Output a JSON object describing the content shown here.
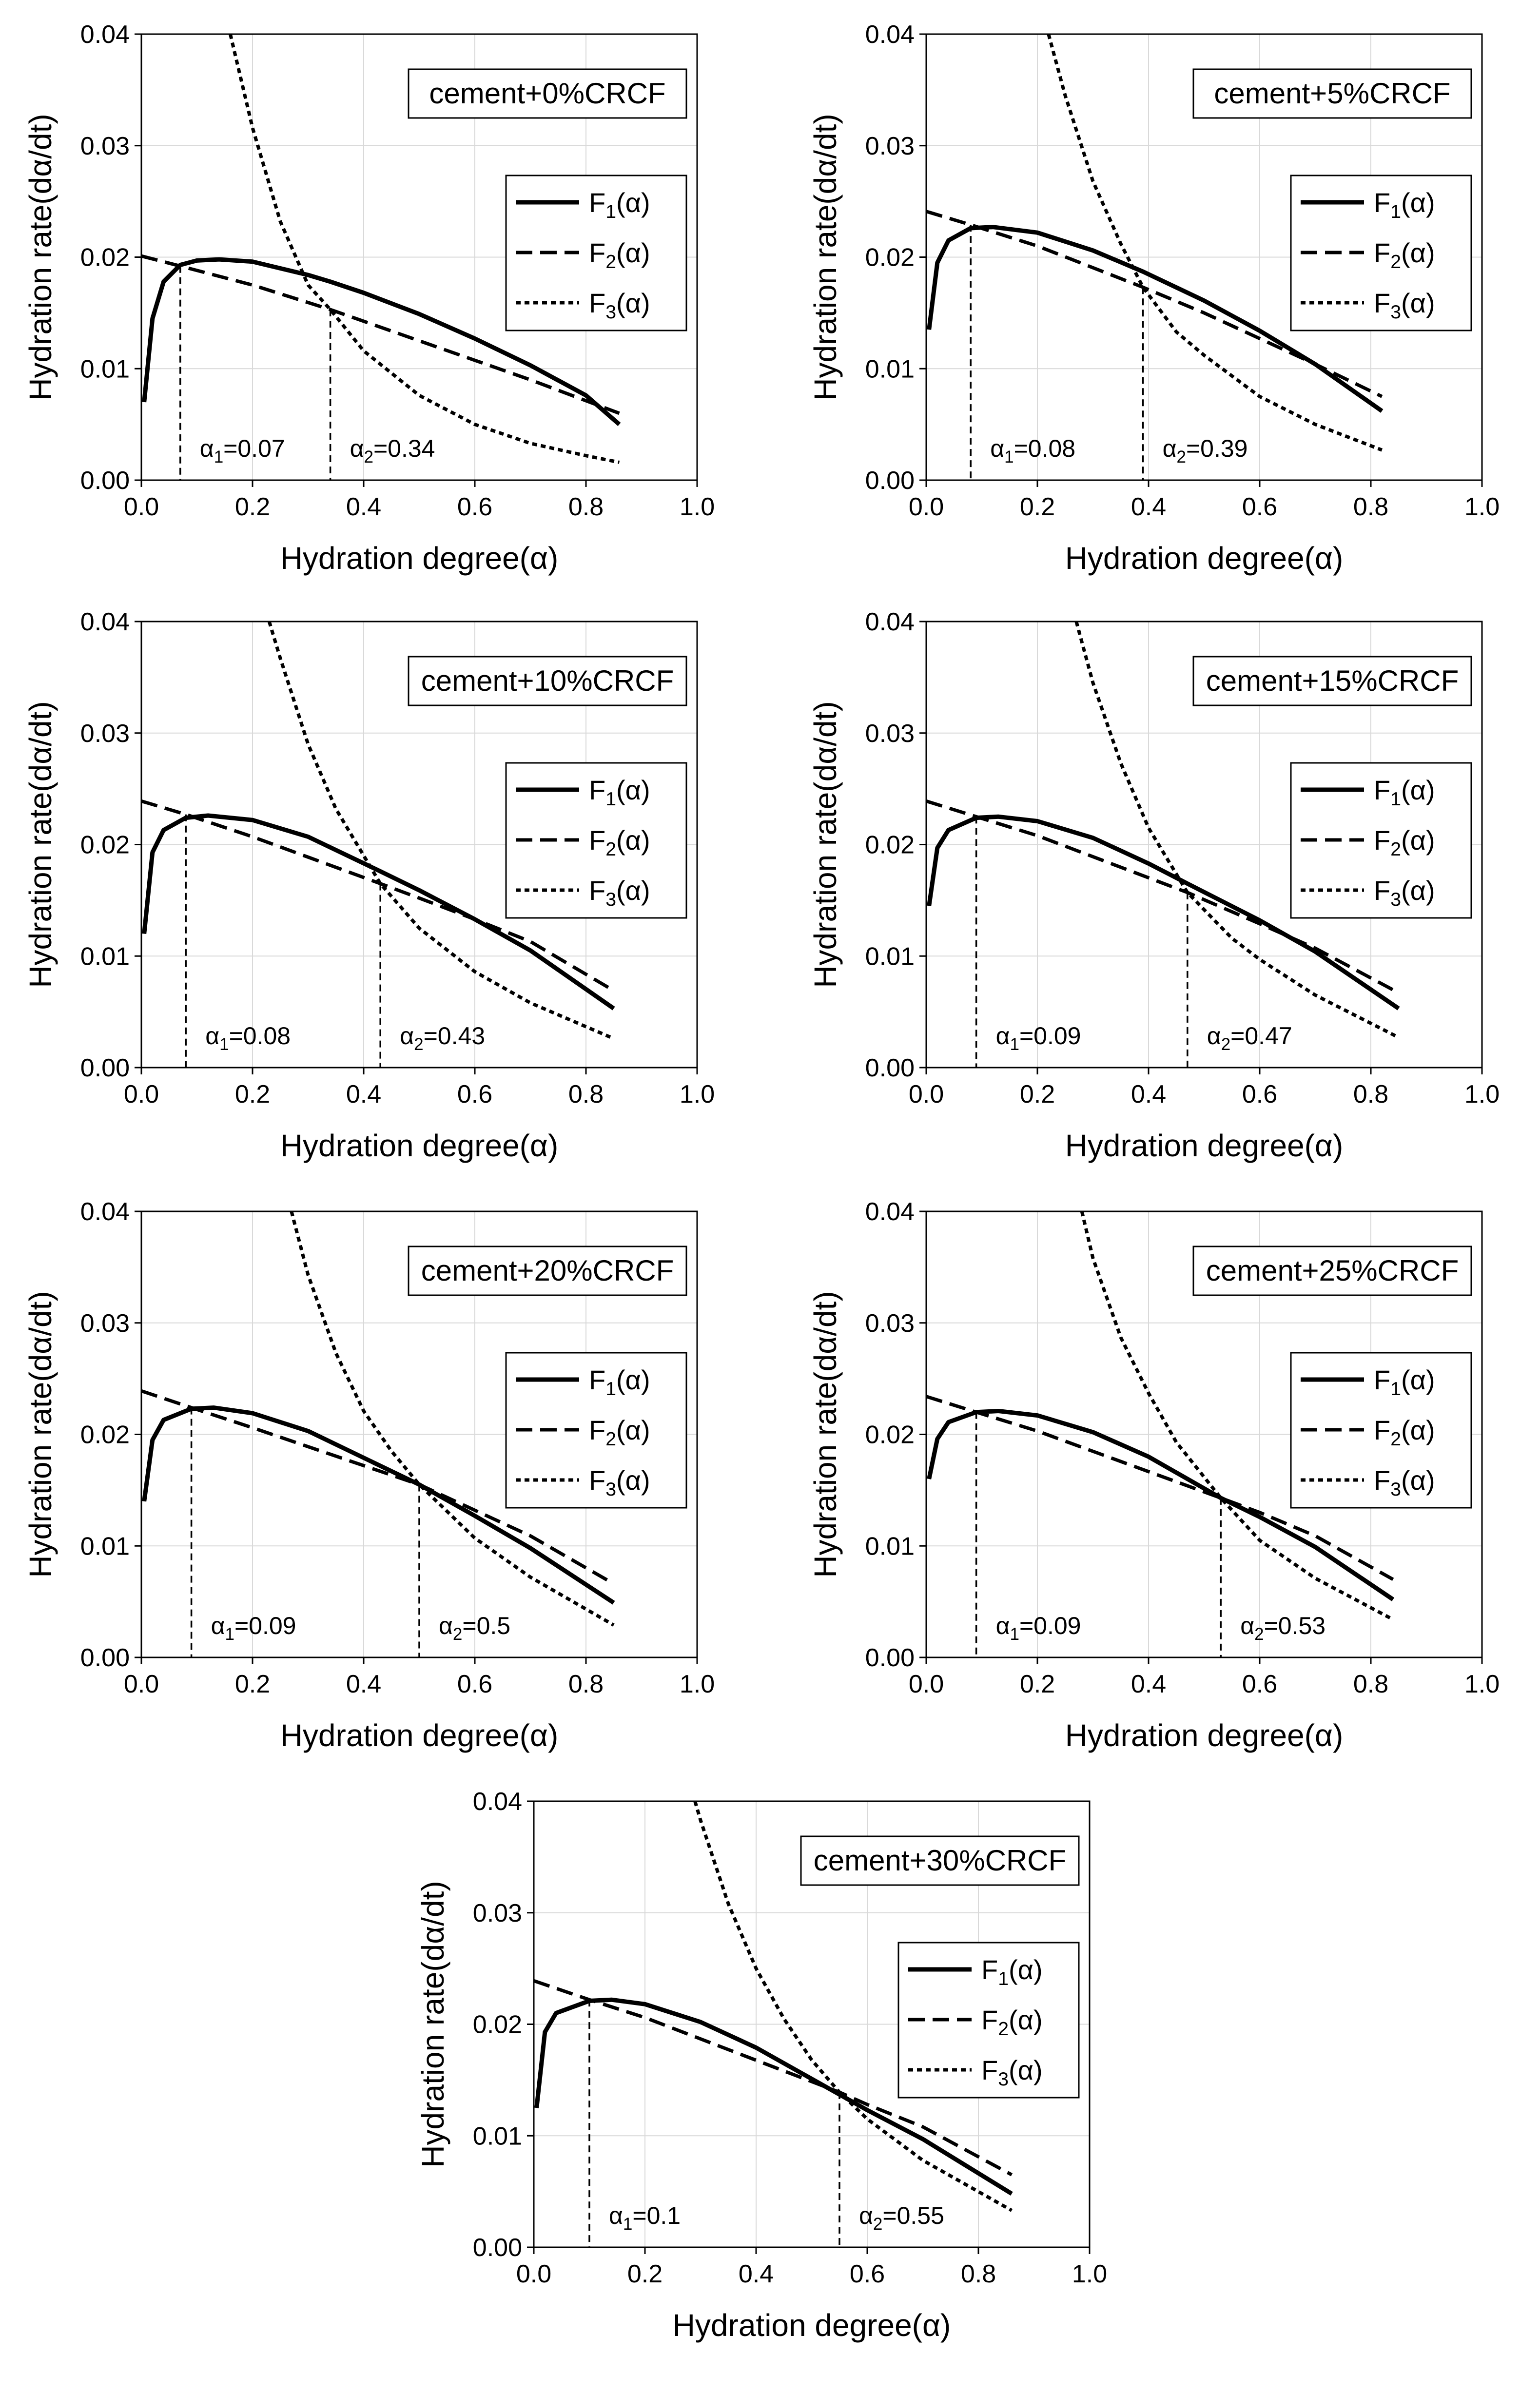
{
  "chart_data": [
    {
      "type": "line",
      "panel": "top-left",
      "title": "cement+0%CRCF",
      "xlabel": "Hydration degree(α)",
      "ylabel": "Hydration rate(dα/dt)",
      "xlim": [
        0.0,
        1.0
      ],
      "ylim": [
        0.0,
        0.04
      ],
      "xticks": [
        "0.0",
        "0.2",
        "0.4",
        "0.6",
        "0.8",
        "1.0"
      ],
      "yticks": [
        "0.00",
        "0.01",
        "0.02",
        "0.03",
        "0.04"
      ],
      "legend": [
        "F1(α)",
        "F2(α)",
        "F3(α)"
      ],
      "legend_position": "right",
      "series": [
        {
          "name": "F1(α)",
          "style": "solid",
          "x": [
            0.005,
            0.02,
            0.04,
            0.07,
            0.1,
            0.14,
            0.2,
            0.3,
            0.34,
            0.4,
            0.5,
            0.6,
            0.7,
            0.8,
            0.86
          ],
          "y": [
            0.007,
            0.0145,
            0.0178,
            0.0193,
            0.0197,
            0.0198,
            0.0196,
            0.0184,
            0.0178,
            0.0168,
            0.0149,
            0.0127,
            0.0103,
            0.0076,
            0.005
          ]
        },
        {
          "name": "F2(α)",
          "style": "dashed",
          "x": [
            0.0,
            0.07,
            0.2,
            0.34,
            0.5,
            0.7,
            0.86
          ],
          "y": [
            0.0201,
            0.0192,
            0.0175,
            0.0153,
            0.0125,
            0.009,
            0.006
          ]
        },
        {
          "name": "F3(α)",
          "style": "dotted",
          "x": [
            0.16,
            0.2,
            0.25,
            0.3,
            0.34,
            0.4,
            0.5,
            0.6,
            0.7,
            0.8,
            0.86
          ],
          "y": [
            0.04,
            0.0316,
            0.0232,
            0.0175,
            0.0153,
            0.0116,
            0.0076,
            0.005,
            0.0033,
            0.0022,
            0.0016
          ]
        }
      ],
      "annotations": [
        {
          "label": "α",
          "sub": "1",
          "value": "=0.07",
          "x": 0.07,
          "y": 0.0192
        },
        {
          "label": "α",
          "sub": "2",
          "value": "=0.34",
          "x": 0.34,
          "y": 0.0153
        }
      ]
    },
    {
      "type": "line",
      "panel": "top-right",
      "title": "cement+5%CRCF",
      "xlabel": "Hydration degree(α)",
      "ylabel": "Hydration rate(dα/dt)",
      "xlim": [
        0.0,
        1.0
      ],
      "ylim": [
        0.0,
        0.04
      ],
      "xticks": [
        "0.0",
        "0.2",
        "0.4",
        "0.6",
        "0.8",
        "1.0"
      ],
      "yticks": [
        "0.00",
        "0.01",
        "0.02",
        "0.03",
        "0.04"
      ],
      "legend": [
        "F1(α)",
        "F2(α)",
        "F3(α)"
      ],
      "legend_position": "right",
      "series": [
        {
          "name": "F1(α)",
          "style": "solid",
          "x": [
            0.005,
            0.02,
            0.04,
            0.08,
            0.12,
            0.2,
            0.3,
            0.39,
            0.5,
            0.6,
            0.7,
            0.82
          ],
          "y": [
            0.0135,
            0.0195,
            0.0215,
            0.0226,
            0.0227,
            0.0222,
            0.0206,
            0.0187,
            0.0161,
            0.0134,
            0.0104,
            0.0062
          ]
        },
        {
          "name": "F2(α)",
          "style": "dashed",
          "x": [
            0.0,
            0.08,
            0.2,
            0.39,
            0.5,
            0.6,
            0.7,
            0.82
          ],
          "y": [
            0.0241,
            0.0229,
            0.021,
            0.0173,
            0.015,
            0.0127,
            0.0104,
            0.0075
          ]
        },
        {
          "name": "F3(α)",
          "style": "dotted",
          "x": [
            0.22,
            0.25,
            0.3,
            0.35,
            0.39,
            0.45,
            0.5,
            0.6,
            0.7,
            0.82
          ],
          "y": [
            0.04,
            0.0345,
            0.0268,
            0.0212,
            0.0173,
            0.0133,
            0.0112,
            0.0075,
            0.005,
            0.0027
          ]
        }
      ],
      "annotations": [
        {
          "label": "α",
          "sub": "1",
          "value": "=0.08",
          "x": 0.08,
          "y": 0.0229
        },
        {
          "label": "α",
          "sub": "2",
          "value": "=0.39",
          "x": 0.39,
          "y": 0.0173
        }
      ]
    },
    {
      "type": "line",
      "panel": "middle-left",
      "title": "cement+10%CRCF",
      "xlabel": "Hydration degree(α)",
      "ylabel": "Hydration rate(dα/dt)",
      "xlim": [
        0.0,
        1.0
      ],
      "ylim": [
        0.0,
        0.04
      ],
      "xticks": [
        "0.0",
        "0.2",
        "0.4",
        "0.6",
        "0.8",
        "1.0"
      ],
      "yticks": [
        "0.00",
        "0.01",
        "0.02",
        "0.03",
        "0.04"
      ],
      "legend": [
        "F1(α)",
        "F2(α)",
        "F3(α)"
      ],
      "legend_position": "right",
      "series": [
        {
          "name": "F1(α)",
          "style": "solid",
          "x": [
            0.005,
            0.02,
            0.04,
            0.08,
            0.12,
            0.2,
            0.3,
            0.43,
            0.5,
            0.6,
            0.7,
            0.85
          ],
          "y": [
            0.012,
            0.0193,
            0.0213,
            0.0224,
            0.0226,
            0.0222,
            0.0207,
            0.0176,
            0.0159,
            0.0133,
            0.0105,
            0.0053
          ]
        },
        {
          "name": "F2(α)",
          "style": "dashed",
          "x": [
            0.0,
            0.08,
            0.2,
            0.43,
            0.5,
            0.6,
            0.7,
            0.85
          ],
          "y": [
            0.0239,
            0.0227,
            0.0207,
            0.0165,
            0.0152,
            0.0133,
            0.0113,
            0.0069
          ]
        },
        {
          "name": "F3(α)",
          "style": "dotted",
          "x": [
            0.23,
            0.25,
            0.3,
            0.35,
            0.43,
            0.5,
            0.6,
            0.7,
            0.85
          ],
          "y": [
            0.04,
            0.0367,
            0.029,
            0.0232,
            0.0165,
            0.0125,
            0.0086,
            0.0058,
            0.0026
          ]
        }
      ],
      "annotations": [
        {
          "label": "α",
          "sub": "1",
          "value": "=0.08",
          "x": 0.08,
          "y": 0.0227
        },
        {
          "label": "α",
          "sub": "2",
          "value": "=0.43",
          "x": 0.43,
          "y": 0.0165
        }
      ]
    },
    {
      "type": "line",
      "panel": "middle-right",
      "title": "cement+15%CRCF",
      "xlabel": "Hydration degree(α)",
      "ylabel": "Hydration rate(dα/dt)",
      "xlim": [
        0.0,
        1.0
      ],
      "ylim": [
        0.0,
        0.04
      ],
      "xticks": [
        "0.0",
        "0.2",
        "0.4",
        "0.6",
        "0.8",
        "1.0"
      ],
      "yticks": [
        "0.00",
        "0.01",
        "0.02",
        "0.03",
        "0.04"
      ],
      "legend": [
        "F1(α)",
        "F2(α)",
        "F3(α)"
      ],
      "legend_position": "right",
      "series": [
        {
          "name": "F1(α)",
          "style": "solid",
          "x": [
            0.005,
            0.02,
            0.04,
            0.09,
            0.13,
            0.2,
            0.3,
            0.4,
            0.47,
            0.6,
            0.7,
            0.85
          ],
          "y": [
            0.0145,
            0.0197,
            0.0213,
            0.0224,
            0.0225,
            0.0221,
            0.0206,
            0.0183,
            0.0165,
            0.0132,
            0.0104,
            0.0053
          ]
        },
        {
          "name": "F2(α)",
          "style": "dashed",
          "x": [
            0.0,
            0.09,
            0.2,
            0.47,
            0.6,
            0.7,
            0.85
          ],
          "y": [
            0.0239,
            0.0225,
            0.0208,
            0.0157,
            0.0129,
            0.0107,
            0.0067
          ]
        },
        {
          "name": "F3(α)",
          "style": "dotted",
          "x": [
            0.27,
            0.3,
            0.35,
            0.4,
            0.47,
            0.55,
            0.6,
            0.7,
            0.85
          ],
          "y": [
            0.04,
            0.0345,
            0.0273,
            0.0215,
            0.0157,
            0.0116,
            0.0097,
            0.0065,
            0.0027
          ]
        }
      ],
      "annotations": [
        {
          "label": "α",
          "sub": "1",
          "value": "=0.09",
          "x": 0.09,
          "y": 0.0225
        },
        {
          "label": "α",
          "sub": "2",
          "value": "=0.47",
          "x": 0.47,
          "y": 0.0157
        }
      ]
    },
    {
      "type": "line",
      "panel": "lower-left",
      "title": "cement+20%CRCF",
      "xlabel": "Hydration degree(α)",
      "ylabel": "Hydration rate(dα/dt)",
      "xlim": [
        0.0,
        1.0
      ],
      "ylim": [
        0.0,
        0.04
      ],
      "xticks": [
        "0.0",
        "0.2",
        "0.4",
        "0.6",
        "0.8",
        "1.0"
      ],
      "yticks": [
        "0.00",
        "0.01",
        "0.02",
        "0.03",
        "0.04"
      ],
      "legend": [
        "F1(α)",
        "F2(α)",
        "F3(α)"
      ],
      "legend_position": "right",
      "series": [
        {
          "name": "F1(α)",
          "style": "solid",
          "x": [
            0.005,
            0.02,
            0.04,
            0.09,
            0.13,
            0.2,
            0.3,
            0.4,
            0.5,
            0.6,
            0.7,
            0.85
          ],
          "y": [
            0.014,
            0.0195,
            0.0213,
            0.0223,
            0.0224,
            0.0219,
            0.0203,
            0.0179,
            0.0155,
            0.0127,
            0.0098,
            0.0049
          ]
        },
        {
          "name": "F2(α)",
          "style": "dashed",
          "x": [
            0.0,
            0.09,
            0.2,
            0.5,
            0.6,
            0.7,
            0.85
          ],
          "y": [
            0.0239,
            0.0224,
            0.0206,
            0.0155,
            0.0132,
            0.0109,
            0.0066
          ]
        },
        {
          "name": "F3(α)",
          "style": "dotted",
          "x": [
            0.27,
            0.3,
            0.35,
            0.4,
            0.45,
            0.5,
            0.6,
            0.7,
            0.85
          ],
          "y": [
            0.04,
            0.0343,
            0.0273,
            0.0221,
            0.0185,
            0.0155,
            0.0107,
            0.0072,
            0.0029
          ]
        }
      ],
      "annotations": [
        {
          "label": "α",
          "sub": "1",
          "value": "=0.09",
          "x": 0.09,
          "y": 0.0224
        },
        {
          "label": "α",
          "sub": "2",
          "value": "=0.5",
          "x": 0.5,
          "y": 0.0155
        }
      ]
    },
    {
      "type": "line",
      "panel": "lower-right",
      "title": "cement+25%CRCF",
      "xlabel": "Hydration degree(α)",
      "ylabel": "Hydration rate(dα/dt)",
      "xlim": [
        0.0,
        1.0
      ],
      "ylim": [
        0.0,
        0.04
      ],
      "xticks": [
        "0.0",
        "0.2",
        "0.4",
        "0.6",
        "0.8",
        "1.0"
      ],
      "yticks": [
        "0.00",
        "0.01",
        "0.02",
        "0.03",
        "0.04"
      ],
      "legend": [
        "F1(α)",
        "F2(α)",
        "F3(α)"
      ],
      "legend_position": "right",
      "series": [
        {
          "name": "F1(α)",
          "style": "solid",
          "x": [
            0.005,
            0.02,
            0.04,
            0.09,
            0.13,
            0.2,
            0.3,
            0.4,
            0.53,
            0.6,
            0.7,
            0.84
          ],
          "y": [
            0.016,
            0.0196,
            0.0211,
            0.022,
            0.0221,
            0.0217,
            0.0202,
            0.018,
            0.0143,
            0.0126,
            0.0099,
            0.0052
          ]
        },
        {
          "name": "F2(α)",
          "style": "dashed",
          "x": [
            0.0,
            0.09,
            0.2,
            0.53,
            0.6,
            0.7,
            0.84
          ],
          "y": [
            0.0234,
            0.022,
            0.0203,
            0.0143,
            0.013,
            0.0109,
            0.007
          ]
        },
        {
          "name": "F3(α)",
          "style": "dotted",
          "x": [
            0.28,
            0.3,
            0.35,
            0.4,
            0.45,
            0.53,
            0.6,
            0.7,
            0.84
          ],
          "y": [
            0.04,
            0.0358,
            0.0287,
            0.0237,
            0.0193,
            0.0143,
            0.0105,
            0.0071,
            0.0034
          ]
        }
      ],
      "annotations": [
        {
          "label": "α",
          "sub": "1",
          "value": "=0.09",
          "x": 0.09,
          "y": 0.022
        },
        {
          "label": "α",
          "sub": "2",
          "value": "=0.53",
          "x": 0.53,
          "y": 0.0143
        }
      ]
    },
    {
      "type": "line",
      "panel": "bottom-center",
      "title": "cement+30%CRCF",
      "xlabel": "Hydration degree(α)",
      "ylabel": "Hydration rate(dα/dt)",
      "xlim": [
        0.0,
        1.0
      ],
      "ylim": [
        0.0,
        0.04
      ],
      "xticks": [
        "0.0",
        "0.2",
        "0.4",
        "0.6",
        "0.8",
        "1.0"
      ],
      "yticks": [
        "0.00",
        "0.01",
        "0.02",
        "0.03",
        "0.04"
      ],
      "legend": [
        "F1(α)",
        "F2(α)",
        "F3(α)"
      ],
      "legend_position": "right",
      "series": [
        {
          "name": "F1(α)",
          "style": "solid",
          "x": [
            0.005,
            0.02,
            0.04,
            0.1,
            0.14,
            0.2,
            0.3,
            0.4,
            0.55,
            0.6,
            0.7,
            0.86
          ],
          "y": [
            0.0125,
            0.0193,
            0.021,
            0.0221,
            0.0222,
            0.0218,
            0.0202,
            0.0179,
            0.0137,
            0.0123,
            0.0097,
            0.0048
          ]
        },
        {
          "name": "F2(α)",
          "style": "dashed",
          "x": [
            0.0,
            0.1,
            0.2,
            0.55,
            0.6,
            0.7,
            0.86
          ],
          "y": [
            0.0239,
            0.0222,
            0.0206,
            0.0139,
            0.0128,
            0.0108,
            0.0065
          ]
        },
        {
          "name": "F3(α)",
          "style": "dotted",
          "x": [
            0.29,
            0.3,
            0.35,
            0.4,
            0.45,
            0.5,
            0.55,
            0.6,
            0.7,
            0.86
          ],
          "y": [
            0.04,
            0.0383,
            0.0308,
            0.025,
            0.0205,
            0.0168,
            0.0139,
            0.0115,
            0.0078,
            0.0033
          ]
        }
      ],
      "annotations": [
        {
          "label": "α",
          "sub": "1",
          "value": "=0.1",
          "x": 0.1,
          "y": 0.0222
        },
        {
          "label": "α",
          "sub": "2",
          "value": "=0.55",
          "x": 0.55,
          "y": 0.0139
        }
      ]
    }
  ]
}
